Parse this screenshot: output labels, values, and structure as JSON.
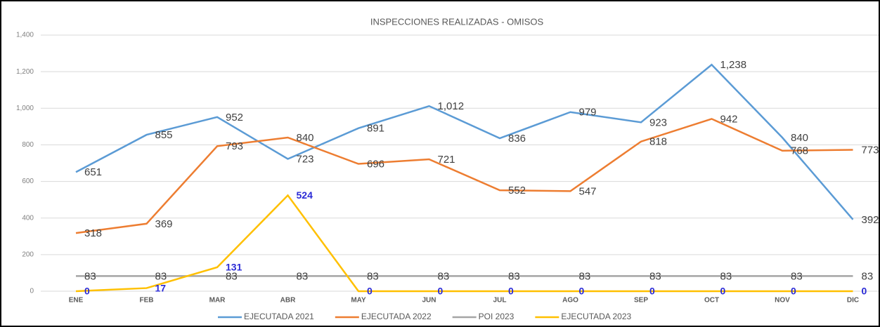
{
  "chart_data": {
    "type": "line",
    "title": "INSPECCIONES REALIZADAS - OMISOS",
    "categories": [
      "ENE",
      "FEB",
      "MAR",
      "ABR",
      "MAY",
      "JUN",
      "JUL",
      "AGO",
      "SEP",
      "OCT",
      "NOV",
      "DIC"
    ],
    "series": [
      {
        "name": "EJECUTADA 2021",
        "color": "#5b9bd5",
        "values": [
          651,
          855,
          952,
          723,
          891,
          1012,
          836,
          979,
          923,
          1238,
          840,
          392
        ],
        "value_labels": [
          "651",
          "855",
          "952",
          "723",
          "891",
          "1,012",
          "836",
          "979",
          "923",
          "1,238",
          "840",
          "392"
        ]
      },
      {
        "name": "EJECUTADA 2022",
        "color": "#ed7d31",
        "values": [
          318,
          369,
          793,
          840,
          696,
          721,
          552,
          547,
          818,
          942,
          768,
          773
        ]
      },
      {
        "name": "POI 2023",
        "color": "#a5a5a5",
        "values": [
          83,
          83,
          83,
          83,
          83,
          83,
          83,
          83,
          83,
          83,
          83,
          83
        ]
      },
      {
        "name": "EJECUTADA 2023",
        "color": "#ffc000",
        "values": [
          0,
          17,
          131,
          524,
          0,
          0,
          0,
          0,
          0,
          0,
          0,
          0
        ]
      }
    ],
    "ylim": [
      0,
      1400
    ],
    "yticks": [
      0,
      200,
      400,
      600,
      800,
      {
        "value": 1000,
        "label": "1,000"
      },
      {
        "value": 1200,
        "label": "1,200"
      },
      {
        "value": 1400,
        "label": "1,400"
      }
    ],
    "grid": true,
    "legend": "bottom"
  }
}
